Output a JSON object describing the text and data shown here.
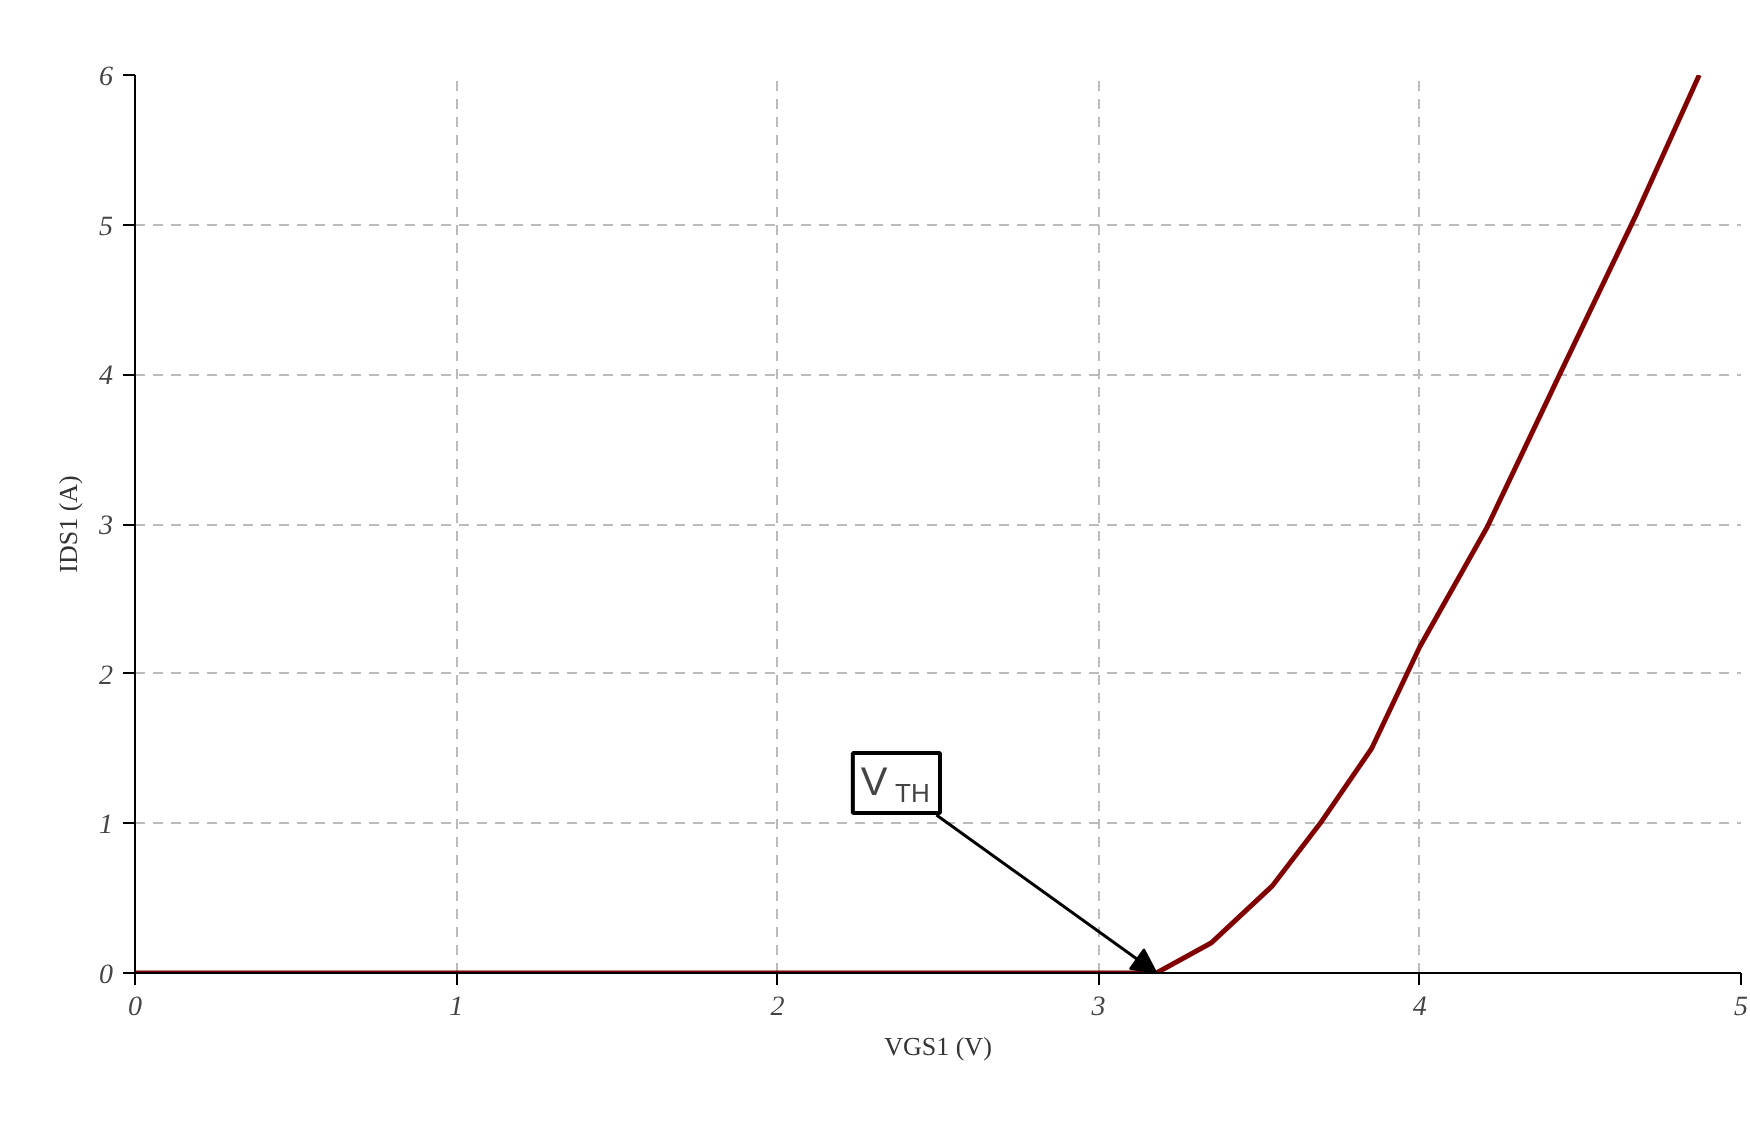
{
  "chart_data": {
    "type": "line",
    "xlabel": "VGS1 (V)",
    "ylabel": "IDS1 (A)",
    "x": [
      0,
      1,
      2,
      3,
      3.18,
      3.35,
      3.54,
      3.69,
      3.85,
      4.0,
      4.21,
      4.44,
      4.67,
      4.87
    ],
    "series": [
      {
        "color": "#800000",
        "values": [
          0,
          0,
          0,
          0,
          0,
          0.2,
          0.58,
          1.0,
          1.5,
          2.18,
          2.98,
          4.02,
          5.05,
          6.0
        ]
      }
    ],
    "xlim": [
      0,
      5
    ],
    "ylim": [
      0,
      6
    ],
    "xticks": [
      0,
      1,
      2,
      3,
      4,
      5
    ],
    "yticks": [
      0,
      1,
      2,
      3,
      4,
      5,
      6
    ],
    "grid": true,
    "line_style": "solid",
    "marker": "none",
    "annotations": [
      {
        "text": "V$_{TH}$",
        "x": 3.18,
        "y": 0
      }
    ]
  }
}
